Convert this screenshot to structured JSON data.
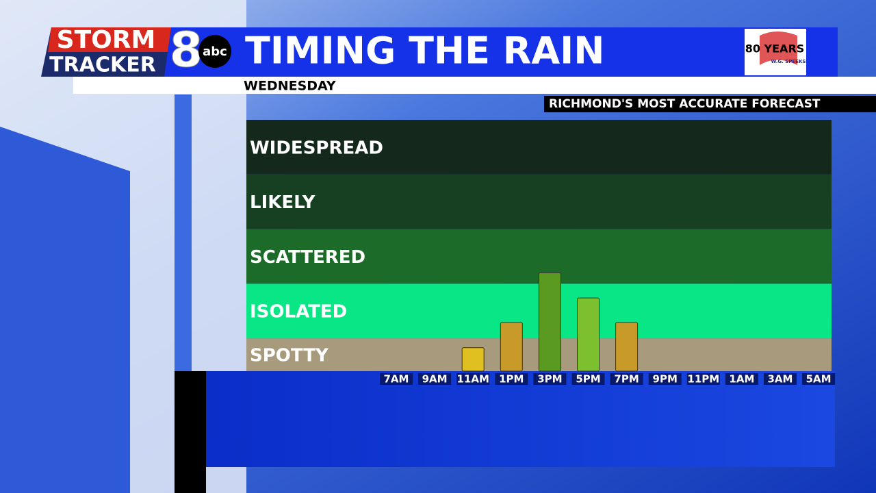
{
  "branding": {
    "storm": "STORM",
    "tracker": "TRACKER",
    "channel": "8",
    "network": "abc",
    "sponsor_years": "80 YEARS",
    "sponsor_name": "W.G. SPEEKS",
    "banner": "RICHMOND'S MOST ACCURATE FORECAST"
  },
  "chart_data": {
    "type": "bar",
    "title": "TIMING THE RAIN",
    "subtitle": "WEDNESDAY",
    "categories": [
      "7AM",
      "9AM",
      "11AM",
      "1PM",
      "3PM",
      "5PM",
      "7PM",
      "9PM",
      "11PM",
      "1AM",
      "3AM",
      "5AM"
    ],
    "values": [
      0,
      0,
      0.43,
      0.89,
      1.8,
      1.34,
      0.89,
      0,
      0,
      0,
      0,
      0
    ],
    "colors": [
      "#d8b030",
      "#d8b030",
      "#e0c020",
      "#c89a2a",
      "#5a9a20",
      "#7cc030",
      "#c89a2a",
      "#d8b030",
      "#d8b030",
      "#d8b030",
      "#d8b030",
      "#d8b030"
    ],
    "ylim": [
      0,
      4.6
    ],
    "bands": [
      {
        "label": "SPOTTY",
        "from": 0,
        "to": 0.6,
        "color": "#a89a7c"
      },
      {
        "label": "ISOLATED",
        "from": 0.6,
        "to": 1.6,
        "color": "#08e686"
      },
      {
        "label": "SCATTERED",
        "from": 1.6,
        "to": 2.6,
        "color": "#1d6b28"
      },
      {
        "label": "LIKELY",
        "from": 2.6,
        "to": 3.6,
        "color": "#173f21"
      },
      {
        "label": "WIDESPREAD",
        "from": 3.6,
        "to": 4.6,
        "color": "#14291c"
      }
    ]
  }
}
